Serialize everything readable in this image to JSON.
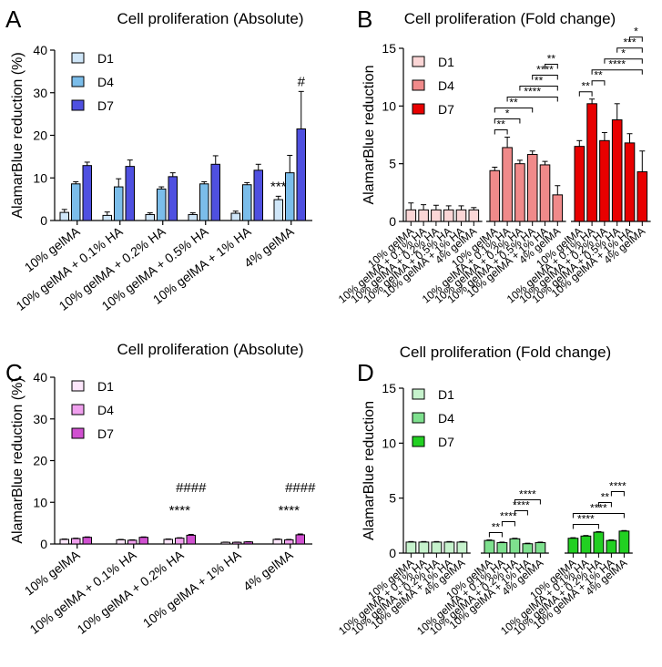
{
  "chart_data": [
    {
      "type": "bar",
      "panel": "A",
      "title": "Cell proliferation (Absolute)",
      "xlabel": "",
      "ylabel": "AlamarBlue reduction (%)",
      "ylim": [
        0,
        40
      ],
      "yticks": [
        0,
        10,
        20,
        30,
        40
      ],
      "categories": [
        "10% gelMA",
        "10% gelMA + 0.1% HA",
        "10% gelMA + 0.2% HA",
        "10% gelMA + 0.5% HA",
        "10% gelMA + 1% HA",
        "4% gelMA"
      ],
      "series": [
        {
          "name": "D1",
          "color": "#cfe6f8",
          "values": [
            1.9,
            1.2,
            1.4,
            1.4,
            1.7,
            4.9
          ],
          "errors": [
            0.7,
            0.8,
            0.4,
            0.4,
            0.5,
            0.8
          ]
        },
        {
          "name": "D4",
          "color": "#7bbdea",
          "values": [
            8.6,
            7.9,
            7.4,
            8.6,
            8.4,
            11.2
          ],
          "errors": [
            0.5,
            1.9,
            0.5,
            0.5,
            0.5,
            4.1
          ]
        },
        {
          "name": "D7",
          "color": "#4f50e0",
          "values": [
            12.9,
            12.7,
            10.3,
            13.2,
            11.8,
            21.5
          ],
          "errors": [
            0.8,
            1.5,
            0.9,
            2.0,
            1.4,
            8.8
          ]
        }
      ],
      "annotations": [
        {
          "text": "***",
          "category": 5,
          "series": 0
        },
        {
          "text": "#",
          "category": 5,
          "series": 2
        }
      ]
    },
    {
      "type": "bar",
      "panel": "B",
      "title": "Cell proliferation (Fold change)",
      "xlabel": "",
      "ylabel": "AlamarBlue reduction",
      "ylim": [
        0,
        15
      ],
      "yticks": [
        0,
        5,
        10,
        15
      ],
      "categories": [
        "10% gelMA",
        "10% gelMA + 0.1% HA",
        "10% gelMA + 0.2% HA",
        "10% gelMA + 0.5% HA",
        "10% gelMA + 1% HA",
        "4% gelMA"
      ],
      "series": [
        {
          "name": "D1",
          "color": "#fbd6d6",
          "values": [
            1,
            1,
            1,
            1,
            1,
            1
          ],
          "errors": [
            0.6,
            0.45,
            0.4,
            0.35,
            0.35,
            0.2
          ]
        },
        {
          "name": "D4",
          "color": "#f08a8a",
          "values": [
            4.4,
            6.4,
            5.0,
            5.8,
            4.9,
            2.3
          ],
          "errors": [
            0.3,
            0.9,
            0.3,
            0.3,
            0.3,
            0.8
          ]
        },
        {
          "name": "D7",
          "color": "#e80000",
          "values": [
            6.5,
            10.2,
            7.0,
            8.8,
            6.8,
            4.3
          ],
          "errors": [
            0.5,
            0.4,
            0.7,
            1.4,
            0.8,
            1.8
          ]
        }
      ],
      "brackets": [
        {
          "series": 1,
          "from": 0,
          "to": 1,
          "label": "**"
        },
        {
          "series": 1,
          "from": 0,
          "to": 2,
          "label": "*"
        },
        {
          "series": 1,
          "from": 0,
          "to": 3,
          "label": "**"
        },
        {
          "series": 1,
          "from": 1,
          "to": 5,
          "label": "****"
        },
        {
          "series": 1,
          "from": 2,
          "to": 5,
          "label": "**"
        },
        {
          "series": 1,
          "from": 3,
          "to": 5,
          "label": "****"
        },
        {
          "series": 1,
          "from": 4,
          "to": 5,
          "label": "**"
        },
        {
          "series": 2,
          "from": 0,
          "to": 1,
          "label": "**"
        },
        {
          "series": 2,
          "from": 1,
          "to": 2,
          "label": "**"
        },
        {
          "series": 2,
          "from": 1,
          "to": 5,
          "label": "****"
        },
        {
          "series": 2,
          "from": 2,
          "to": 5,
          "label": "*"
        },
        {
          "series": 2,
          "from": 3,
          "to": 5,
          "label": "***"
        },
        {
          "series": 2,
          "from": 4,
          "to": 5,
          "label": "*"
        }
      ]
    },
    {
      "type": "bar",
      "panel": "C",
      "title": "Cell proliferation (Absolute)",
      "xlabel": "",
      "ylabel": "AlamarBlue reduction (%)",
      "ylim": [
        0,
        40
      ],
      "yticks": [
        0,
        10,
        20,
        30,
        40
      ],
      "categories": [
        "10% gelMA",
        "10% gelMA + 0.1% HA",
        "10% gelMA + 0.2% HA",
        "10% gelMA + 1% HA",
        "4% gelMA"
      ],
      "series": [
        {
          "name": "D1",
          "color": "#fde6fb",
          "values": [
            1.1,
            1.0,
            1.1,
            0.4,
            1.1
          ],
          "errors": [
            0.1,
            0.1,
            0.1,
            0.05,
            0.1
          ]
        },
        {
          "name": "D4",
          "color": "#f0a0ee",
          "values": [
            1.3,
            0.9,
            1.4,
            0.4,
            1.0
          ],
          "errors": [
            0.1,
            0.1,
            0.1,
            0.05,
            0.1
          ]
        },
        {
          "name": "D7",
          "color": "#d050d0",
          "values": [
            1.6,
            1.6,
            2.1,
            0.5,
            2.2
          ],
          "errors": [
            0.1,
            0.1,
            0.2,
            0.05,
            0.2
          ]
        }
      ],
      "annotations": [
        {
          "text": "****",
          "category": 2,
          "series": 1
        },
        {
          "text": "####",
          "category": 2,
          "series": 2
        },
        {
          "text": "****",
          "category": 4,
          "series": 1
        },
        {
          "text": "####",
          "category": 4,
          "series": 2
        }
      ]
    },
    {
      "type": "bar",
      "panel": "D",
      "title": "Cell proliferation (Fold change)",
      "xlabel": "",
      "ylabel": "AlamarBlue reduction",
      "ylim": [
        0,
        15
      ],
      "yticks": [
        0,
        5,
        10,
        15
      ],
      "categories": [
        "10% gelMA",
        "10% gelMA + 0.1% HA",
        "10% gelMA + 0.2% HA",
        "10% gelMA + 1% HA",
        "4% gelMA"
      ],
      "series": [
        {
          "name": "D1",
          "color": "#c6f2cc",
          "values": [
            1,
            1,
            1,
            1,
            1
          ],
          "errors": [
            0.05,
            0.05,
            0.05,
            0.05,
            0.05
          ]
        },
        {
          "name": "D4",
          "color": "#7ee08e",
          "values": [
            1.15,
            0.95,
            1.3,
            0.85,
            0.95
          ],
          "errors": [
            0.05,
            0.05,
            0.05,
            0.05,
            0.05
          ]
        },
        {
          "name": "D7",
          "color": "#22d022",
          "values": [
            1.35,
            1.55,
            1.9,
            1.15,
            2.0
          ],
          "errors": [
            0.05,
            0.05,
            0.05,
            0.05,
            0.05
          ]
        }
      ],
      "brackets": [
        {
          "series": 1,
          "from": 0,
          "to": 1,
          "label": "**"
        },
        {
          "series": 1,
          "from": 1,
          "to": 2,
          "label": "****"
        },
        {
          "series": 1,
          "from": 2,
          "to": 3,
          "label": "****"
        },
        {
          "series": 1,
          "from": 2,
          "to": 4,
          "label": "****"
        },
        {
          "series": 2,
          "from": 0,
          "to": 2,
          "label": "****"
        },
        {
          "series": 2,
          "from": 0,
          "to": 4,
          "label": "****"
        },
        {
          "series": 2,
          "from": 2,
          "to": 3,
          "label": "**"
        },
        {
          "series": 2,
          "from": 3,
          "to": 4,
          "label": "****"
        }
      ]
    }
  ]
}
